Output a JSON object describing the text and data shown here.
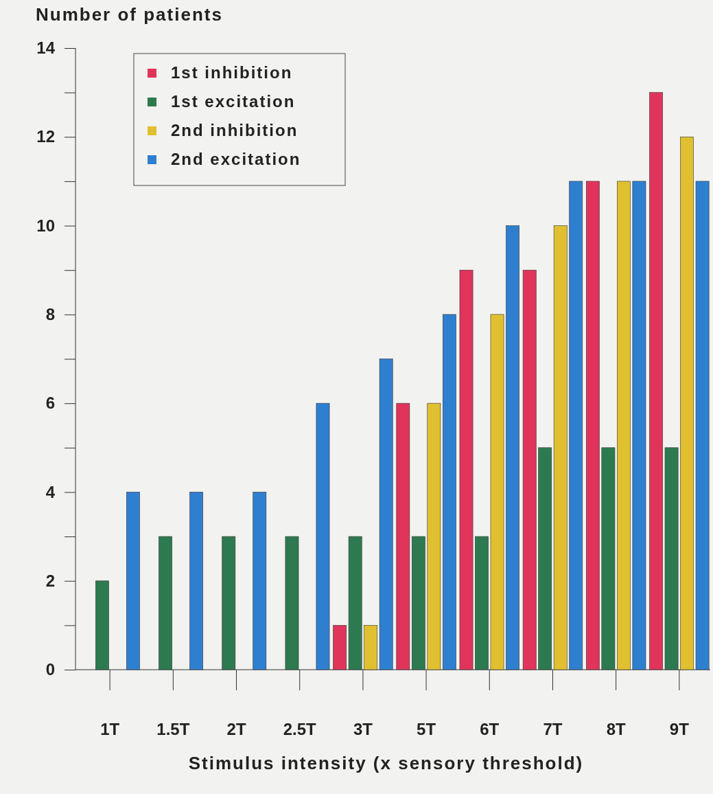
{
  "chart_data": {
    "type": "bar",
    "ylabel": "Number of patients",
    "xlabel": "Stimulus intensity (x sensory threshold)",
    "categories": [
      "1T",
      "1.5T",
      "2T",
      "2.5T",
      "3T",
      "5T",
      "6T",
      "7T",
      "8T",
      "9T"
    ],
    "series": [
      {
        "name": "1st inhibition",
        "color": "#e0345a",
        "values": [
          0,
          0,
          0,
          0,
          1,
          6,
          9,
          9,
          11,
          13
        ]
      },
      {
        "name": "1st excitation",
        "color": "#2e7a50",
        "values": [
          2,
          3,
          3,
          3,
          3,
          3,
          3,
          5,
          5,
          5
        ]
      },
      {
        "name": "2nd inhibition",
        "color": "#e0c030",
        "values": [
          0,
          0,
          0,
          0,
          1,
          6,
          8,
          10,
          11,
          12
        ]
      },
      {
        "name": "2nd excitation",
        "color": "#2f7fd0",
        "values": [
          4,
          4,
          4,
          6,
          7,
          8,
          10,
          11,
          11,
          11
        ]
      }
    ],
    "ylim": [
      0,
      14
    ],
    "yticks": [
      0,
      {
        "value": 1,
        "label": null
      },
      2,
      {
        "value": 3,
        "label": null
      },
      4,
      {
        "value": 5,
        "label": null
      },
      6,
      {
        "value": 7,
        "label": null
      },
      8,
      {
        "value": 9,
        "label": null
      },
      10,
      {
        "value": 11,
        "label": null
      },
      12,
      {
        "value": 13,
        "label": null
      },
      14
    ],
    "grid": false,
    "legend": "top left"
  }
}
